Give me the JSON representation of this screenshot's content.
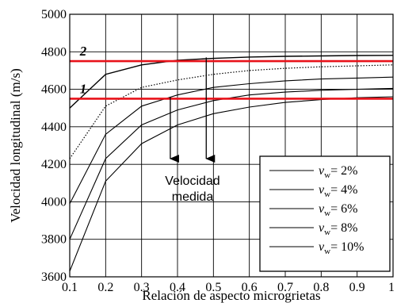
{
  "chart_data": {
    "type": "line",
    "xlabel": "Relación de aspecto microgrietas",
    "ylabel": "Velocidad longitudinal (m/s)",
    "xlim": [
      0.1,
      1.0
    ],
    "ylim": [
      3600,
      5000
    ],
    "xticks": [
      0.1,
      0.2,
      0.3,
      0.4,
      0.5,
      0.6,
      0.7,
      0.8,
      0.9,
      1.0
    ],
    "xtick_labels": [
      "0.1",
      "0.2",
      "0.3",
      "0.4",
      "0.5",
      "0.6",
      "0.7",
      "0.8",
      "0.9",
      "1"
    ],
    "yticks": [
      3600,
      3800,
      4000,
      4200,
      4400,
      4600,
      4800,
      5000
    ],
    "ytick_labels": [
      "3600",
      "3800",
      "4000",
      "4200",
      "4400",
      "4600",
      "4800",
      "5000"
    ],
    "grid": true,
    "legend_position": "bottom-right",
    "series": [
      {
        "name": "= 2%",
        "var": "v",
        "sub": "w",
        "style": "solid",
        "x": [
          0.1,
          0.2,
          0.3,
          0.4,
          0.5,
          0.6,
          0.7,
          0.8,
          0.9,
          1.0
        ],
        "y": [
          4500,
          4680,
          4730,
          4755,
          4765,
          4772,
          4776,
          4778,
          4780,
          4781
        ]
      },
      {
        "name": "= 4%",
        "var": "v",
        "sub": "w",
        "style": "dotted",
        "x": [
          0.1,
          0.2,
          0.3,
          0.4,
          0.5,
          0.6,
          0.7,
          0.8,
          0.9,
          1.0
        ],
        "y": [
          4230,
          4510,
          4610,
          4650,
          4680,
          4700,
          4712,
          4720,
          4725,
          4730
        ]
      },
      {
        "name": "= 6%",
        "var": "v",
        "sub": "w",
        "style": "solid",
        "x": [
          0.1,
          0.2,
          0.3,
          0.4,
          0.5,
          0.6,
          0.7,
          0.8,
          0.9,
          1.0
        ],
        "y": [
          3990,
          4360,
          4510,
          4570,
          4610,
          4630,
          4645,
          4655,
          4660,
          4665
        ]
      },
      {
        "name": "= 8%",
        "var": "v",
        "sub": "w",
        "style": "solid",
        "x": [
          0.1,
          0.2,
          0.3,
          0.4,
          0.5,
          0.6,
          0.7,
          0.8,
          0.9,
          1.0
        ],
        "y": [
          3800,
          4230,
          4410,
          4490,
          4540,
          4570,
          4585,
          4595,
          4600,
          4605
        ]
      },
      {
        "name": "= 10%",
        "var": "v",
        "sub": "w",
        "style": "solid",
        "x": [
          0.1,
          0.2,
          0.3,
          0.4,
          0.5,
          0.6,
          0.7,
          0.8,
          0.9,
          1.0
        ],
        "y": [
          3630,
          4110,
          4310,
          4410,
          4470,
          4505,
          4530,
          4545,
          4555,
          4560
        ]
      }
    ],
    "reference_lines": [
      {
        "label": "2",
        "y": 4750,
        "color": "#e8121a"
      },
      {
        "label": "1",
        "y": 4550,
        "color": "#e8121a"
      }
    ],
    "annotation": {
      "lines": [
        "Velocidad",
        "medida"
      ],
      "arrows": [
        {
          "x": 0.38,
          "y_from": 4560,
          "y_to": 4230
        },
        {
          "x": 0.48,
          "y_from": 4770,
          "y_to": 4230
        }
      ]
    }
  }
}
